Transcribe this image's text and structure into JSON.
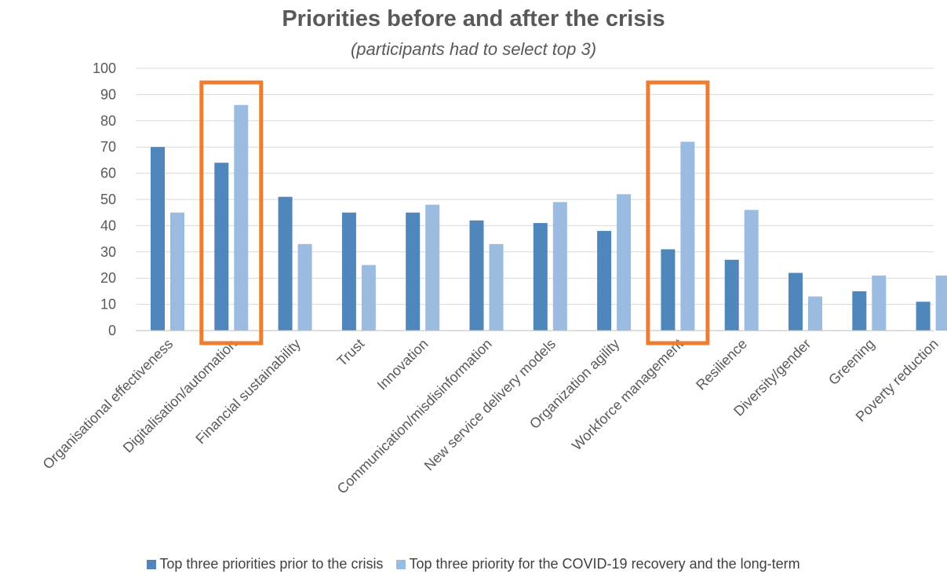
{
  "chart_data": {
    "type": "bar",
    "title": "Priorities before and after the crisis",
    "subtitle": "(participants had to select top 3)",
    "xlabel": "",
    "ylabel": "",
    "ylim": [
      0,
      100
    ],
    "yticks": [
      0,
      10,
      20,
      30,
      40,
      50,
      60,
      70,
      80,
      90,
      100
    ],
    "grid": true,
    "legend_position": "bottom",
    "categories": [
      "Organisational effectiveness",
      "Digitalisation/automation",
      "Financial sustainability",
      "Trust",
      "Innovation",
      "Communication/misdisinformation",
      "New service delivery models",
      "Organization agility",
      "Workforce management",
      "Resilience",
      "Diversity/gender",
      "Greening",
      "Poverty reduction"
    ],
    "series": [
      {
        "name": "Top three priorities prior to  the crisis",
        "color": "#4F87BD",
        "values": [
          70,
          64,
          51,
          45,
          45,
          42,
          41,
          38,
          31,
          27,
          22,
          15,
          11
        ]
      },
      {
        "name": "Top three priority for the COVID-19 recovery and the long-term",
        "color": "#9BBBE0",
        "values": [
          45,
          86,
          33,
          25,
          48,
          33,
          49,
          52,
          72,
          46,
          13,
          21,
          21
        ]
      }
    ],
    "highlighted_categories": [
      "Digitalisation/automation",
      "Workforce management"
    ],
    "highlight_color": "#ED7D31"
  }
}
